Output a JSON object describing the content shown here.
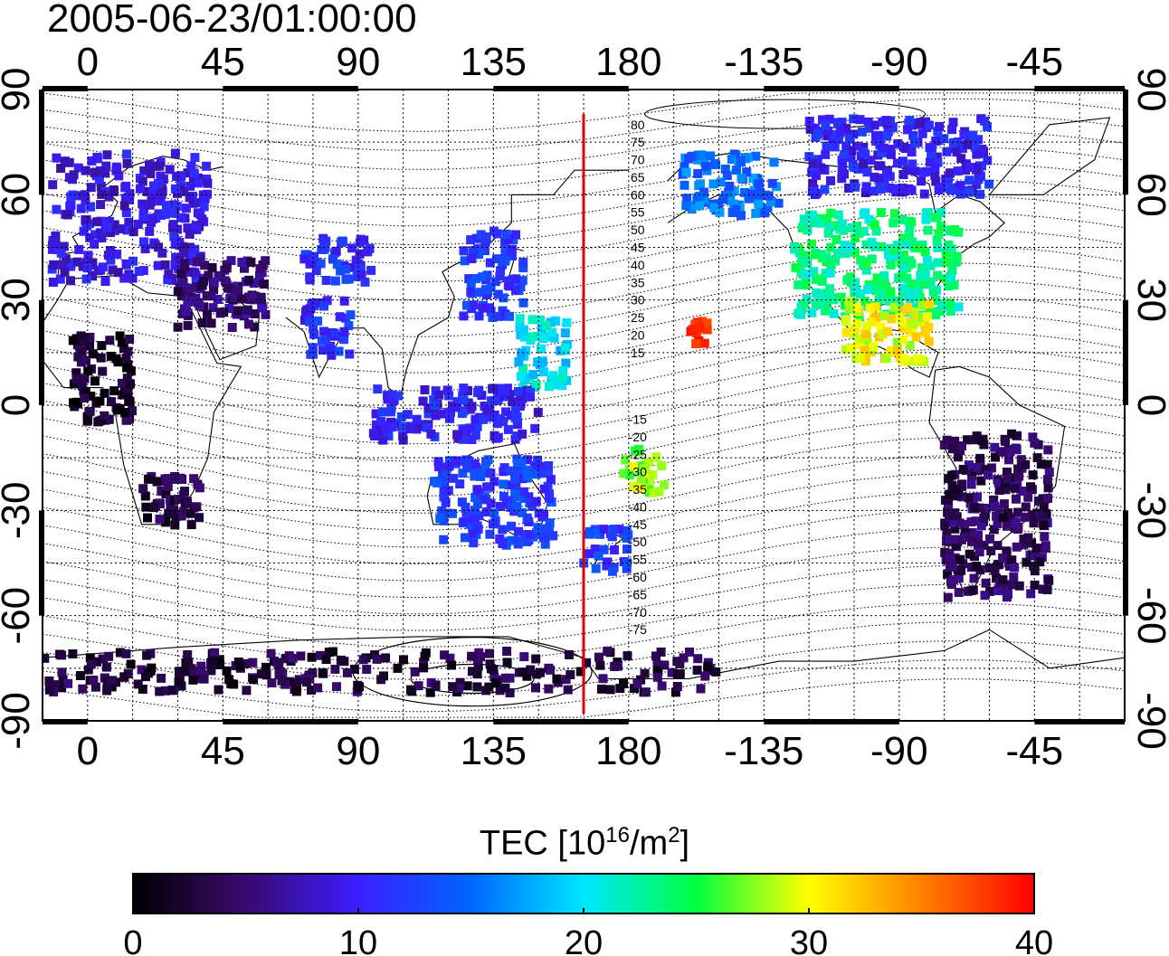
{
  "title": "2005-06-23/01:00:00",
  "map": {
    "type": "world-map",
    "projection": "equirectangular",
    "lon_center": 165,
    "lon_range": [
      -15,
      345
    ],
    "lat_range": [
      -90,
      90
    ],
    "meridian_line": {
      "lon": 165,
      "color": "#e00000"
    },
    "top_lon_ticks": [
      "0",
      "45",
      "90",
      "135",
      "180",
      "-135",
      "-90",
      "-45"
    ],
    "bottom_lon_ticks": [
      "0",
      "45",
      "90",
      "135",
      "180",
      "-135",
      "-90",
      "-45"
    ],
    "left_lat_ticks": [
      "90",
      "60",
      "30",
      "0",
      "-30",
      "-60",
      "-90"
    ],
    "right_lat_ticks": [
      "90",
      "60",
      "30",
      "0",
      "-30",
      "-60",
      "-90"
    ],
    "contour_labels_north": [
      "80",
      "75",
      "70",
      "65",
      "60",
      "55",
      "50",
      "45",
      "40",
      "35",
      "30",
      "25",
      "20",
      "15"
    ],
    "contour_labels_south": [
      "-15",
      "-20",
      "-25",
      "-30",
      "-35",
      "-40",
      "-45",
      "-50",
      "-55",
      "-60",
      "-65",
      "-70",
      "-75"
    ],
    "grid": true
  },
  "colorbar": {
    "label_main": "TEC  [10",
    "label_sup1": "16",
    "label_mid": "/m",
    "label_sup2": "2",
    "label_end": "]",
    "min": 0,
    "max": 40,
    "ticks": [
      "0",
      "10",
      "20",
      "30",
      "40"
    ],
    "stops": [
      "#000000",
      "#3a0a6e",
      "#3a1eff",
      "#0066ff",
      "#00e6ff",
      "#00ff40",
      "#ffff00",
      "#ff8000",
      "#ff0000"
    ]
  },
  "tec_regions": [
    {
      "name": "europe",
      "lon": [
        -12,
        40
      ],
      "lat": [
        35,
        72
      ],
      "tec": 9
    },
    {
      "name": "middle-east",
      "lon": [
        30,
        60
      ],
      "lat": [
        22,
        42
      ],
      "tec": 5
    },
    {
      "name": "central-asia",
      "lon": [
        72,
        95
      ],
      "lat": [
        35,
        48
      ],
      "tec": 11
    },
    {
      "name": "india",
      "lon": [
        72,
        88
      ],
      "lat": [
        14,
        30
      ],
      "tec": 11
    },
    {
      "name": "japan-korea",
      "lon": [
        125,
        145
      ],
      "lat": [
        25,
        50
      ],
      "tec": 12
    },
    {
      "name": "pacific-nw",
      "lon": [
        143,
        160
      ],
      "lat": [
        5,
        25
      ],
      "tec": 20
    },
    {
      "name": "indonesia",
      "lon": [
        95,
        150
      ],
      "lat": [
        -10,
        5
      ],
      "tec": 10
    },
    {
      "name": "australia",
      "lon": [
        115,
        155
      ],
      "lat": [
        -40,
        -15
      ],
      "tec": 12
    },
    {
      "name": "new-zealand",
      "lon": [
        165,
        180
      ],
      "lat": [
        -48,
        -35
      ],
      "tec": 12
    },
    {
      "name": "fiji-tonga",
      "lon": [
        178,
        192
      ],
      "lat": [
        -25,
        -12
      ],
      "tec": 28
    },
    {
      "name": "hawaii",
      "lon": [
        200,
        207
      ],
      "lat": [
        17,
        24
      ],
      "tec": 38
    },
    {
      "name": "alaska",
      "lon": [
        198,
        230
      ],
      "lat": [
        54,
        72
      ],
      "tec": 15
    },
    {
      "name": "north-america",
      "lon": [
        235,
        290
      ],
      "lat": [
        25,
        55
      ],
      "tec": 23
    },
    {
      "name": "mexico",
      "lon": [
        252,
        280
      ],
      "lat": [
        12,
        30
      ],
      "tec": 30
    },
    {
      "name": "canada-north",
      "lon": [
        240,
        300
      ],
      "lat": [
        60,
        82
      ],
      "tec": 10
    },
    {
      "name": "south-america",
      "lon": [
        285,
        320
      ],
      "lat": [
        -55,
        -8
      ],
      "tec": 4
    },
    {
      "name": "africa-south",
      "lon": [
        18,
        38
      ],
      "lat": [
        -35,
        -20
      ],
      "tec": 3
    },
    {
      "name": "africa-north",
      "lon": [
        -5,
        15
      ],
      "lat": [
        -5,
        20
      ],
      "tec": 2
    },
    {
      "name": "antarctica",
      "lon": [
        -15,
        210
      ],
      "lat": [
        -82,
        -70
      ],
      "tec": 3
    }
  ]
}
